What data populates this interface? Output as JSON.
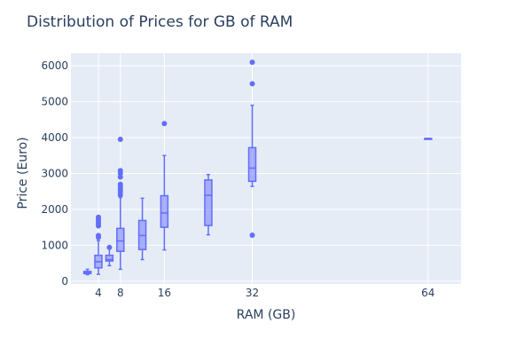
{
  "chart_data": {
    "type": "box",
    "title": "Distribution of Prices for GB of RAM",
    "xlabel": "RAM (GB)",
    "ylabel": "Price (Euro)",
    "xlim": [
      -1,
      70
    ],
    "ylim": [
      -80,
      6350
    ],
    "x_ticks": [
      4,
      8,
      16,
      32,
      64
    ],
    "y_ticks": [
      0,
      1000,
      2000,
      3000,
      4000,
      5000,
      6000
    ],
    "grid": true,
    "colors": {
      "box_line": "#636efa",
      "box_fill": "rgba(99,110,250,0.5)",
      "plot_bg": "#e5ecf6",
      "grid": "#ffffff",
      "text": "#2a3f5f"
    },
    "boxes": [
      {
        "x": 2,
        "min": 180,
        "q1": 210,
        "median": 240,
        "q3": 270,
        "max": 330,
        "outliers": []
      },
      {
        "x": 4,
        "min": 190,
        "q1": 370,
        "median": 540,
        "q3": 720,
        "max": 1130,
        "outliers": [
          1220,
          1270,
          1540,
          1600,
          1650,
          1720,
          1780
        ]
      },
      {
        "x": 6,
        "min": 430,
        "q1": 560,
        "median": 600,
        "q3": 720,
        "max": 900,
        "outliers": [
          940
        ]
      },
      {
        "x": 8,
        "min": 330,
        "q1": 830,
        "median": 1120,
        "q3": 1470,
        "max": 2330,
        "outliers": [
          2400,
          2480,
          2550,
          2620,
          2700,
          2900,
          3000,
          3080,
          3950
        ]
      },
      {
        "x": 12,
        "min": 600,
        "q1": 880,
        "median": 1270,
        "q3": 1690,
        "max": 2310,
        "outliers": []
      },
      {
        "x": 16,
        "min": 870,
        "q1": 1500,
        "median": 1900,
        "q3": 2380,
        "max": 3500,
        "outliers": [
          4390
        ]
      },
      {
        "x": 24,
        "min": 1290,
        "q1": 1550,
        "median": 2390,
        "q3": 2820,
        "max": 2970,
        "outliers": []
      },
      {
        "x": 32,
        "min": 2640,
        "q1": 2780,
        "median": 3150,
        "q3": 3720,
        "max": 4900,
        "outliers": [
          1280,
          5500,
          6100
        ]
      },
      {
        "x": 64,
        "min": 3975,
        "q1": 3975,
        "median": 3975,
        "q3": 3975,
        "max": 3975,
        "outliers": []
      }
    ]
  }
}
